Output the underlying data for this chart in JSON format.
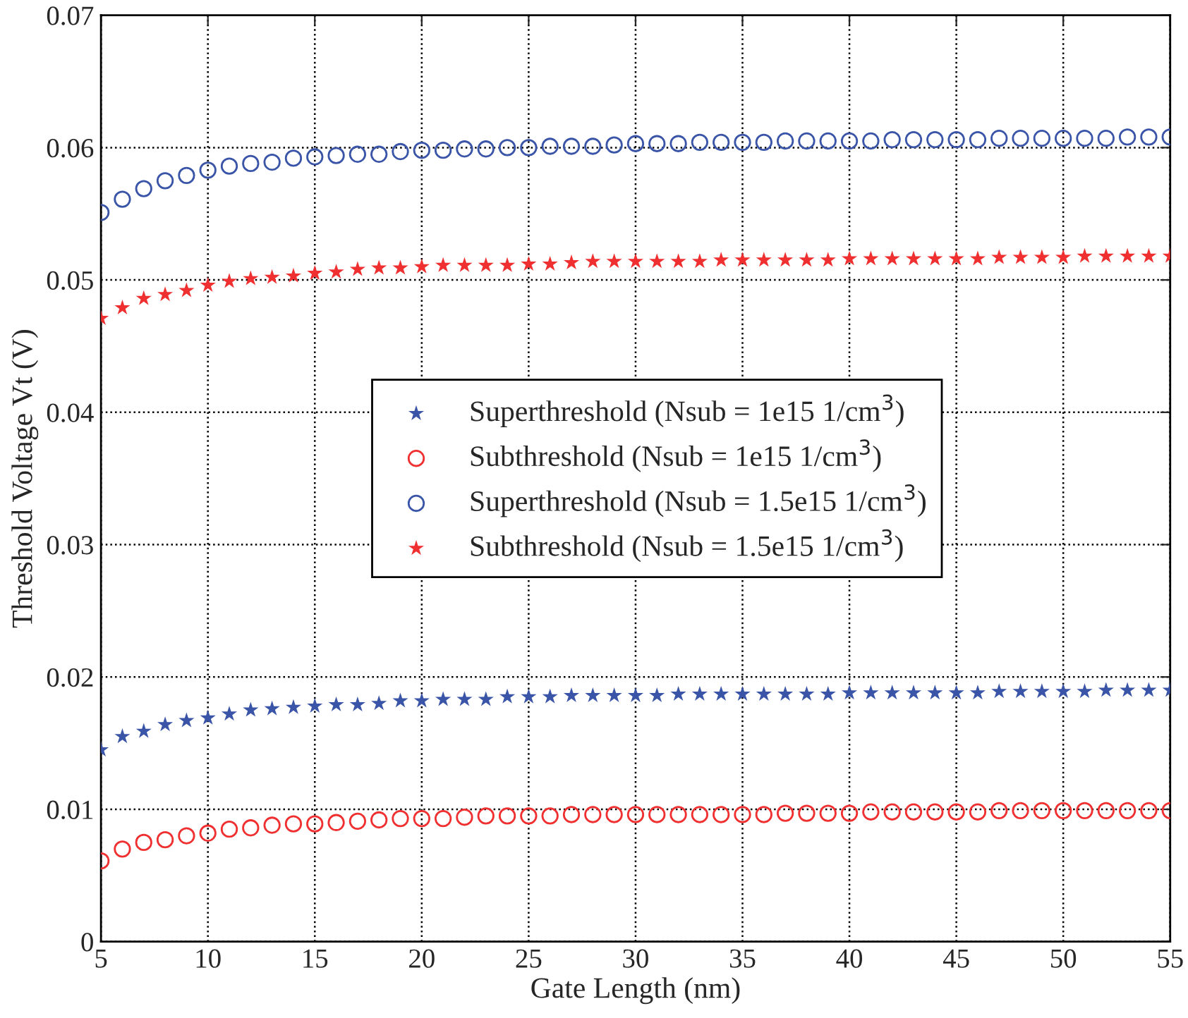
{
  "chart_data": {
    "type": "scatter",
    "xlabel": "Gate Length (nm)",
    "ylabel": "Threshold Voltage Vt (V)",
    "x": [
      5,
      6,
      7,
      8,
      9,
      10,
      11,
      12,
      13,
      14,
      15,
      16,
      17,
      18,
      19,
      20,
      21,
      22,
      23,
      24,
      25,
      26,
      27,
      28,
      29,
      30,
      31,
      32,
      33,
      34,
      35,
      36,
      37,
      38,
      39,
      40,
      41,
      42,
      43,
      44,
      45,
      46,
      47,
      48,
      49,
      50,
      51,
      52,
      53,
      54,
      55
    ],
    "series": [
      {
        "name": "Superthreshold (Nsub = 1e15 1/cm$^{3}$)",
        "color": "#3a55a8",
        "marker": "star",
        "values": [
          0.0145,
          0.0155,
          0.0159,
          0.0164,
          0.0167,
          0.0169,
          0.0172,
          0.0175,
          0.0176,
          0.0177,
          0.0178,
          0.0179,
          0.0179,
          0.018,
          0.0182,
          0.0182,
          0.0183,
          0.0183,
          0.0183,
          0.0185,
          0.0185,
          0.0185,
          0.0186,
          0.0186,
          0.0186,
          0.0186,
          0.0186,
          0.0187,
          0.0187,
          0.0187,
          0.0187,
          0.0187,
          0.0187,
          0.0187,
          0.0187,
          0.0188,
          0.0188,
          0.0188,
          0.0188,
          0.0188,
          0.0188,
          0.0188,
          0.0189,
          0.0189,
          0.0189,
          0.0189,
          0.0189,
          0.019,
          0.019,
          0.019,
          0.019
        ]
      },
      {
        "name": "Subthreshold (Nsub = 1e15 1/cm$^{3}$)",
        "color": "#f03030",
        "marker": "circle",
        "values": [
          0.0061,
          0.007,
          0.0075,
          0.0077,
          0.008,
          0.0082,
          0.0085,
          0.0086,
          0.0088,
          0.0089,
          0.0089,
          0.009,
          0.0091,
          0.0092,
          0.0093,
          0.0093,
          0.0093,
          0.0094,
          0.0095,
          0.0095,
          0.0095,
          0.0095,
          0.0096,
          0.0096,
          0.0096,
          0.0096,
          0.0096,
          0.0096,
          0.0096,
          0.0096,
          0.0096,
          0.0096,
          0.0097,
          0.0097,
          0.0097,
          0.0097,
          0.0098,
          0.0098,
          0.0098,
          0.0098,
          0.0098,
          0.0098,
          0.0099,
          0.0099,
          0.0099,
          0.0099,
          0.0099,
          0.0099,
          0.0099,
          0.0099,
          0.0099
        ]
      },
      {
        "name": "Superthreshold (Nsub = 1.5e15 1/cm$^{3}$)",
        "color": "#3a55a8",
        "marker": "circle",
        "values": [
          0.0551,
          0.0561,
          0.0569,
          0.0575,
          0.0579,
          0.0583,
          0.0586,
          0.0588,
          0.0589,
          0.0592,
          0.0593,
          0.0594,
          0.0595,
          0.0595,
          0.0597,
          0.0598,
          0.0598,
          0.0599,
          0.0599,
          0.06,
          0.06,
          0.0601,
          0.0601,
          0.0601,
          0.0602,
          0.0603,
          0.0603,
          0.0603,
          0.0604,
          0.0604,
          0.0604,
          0.0604,
          0.0605,
          0.0605,
          0.0605,
          0.0605,
          0.0605,
          0.0606,
          0.0606,
          0.0606,
          0.0606,
          0.0606,
          0.0607,
          0.0607,
          0.0607,
          0.0607,
          0.0607,
          0.0607,
          0.0608,
          0.0608,
          0.0608
        ]
      },
      {
        "name": "Subthreshold (Nsub = 1.5e15 1/cm$^{3}$)",
        "color": "#f03030",
        "marker": "star",
        "values": [
          0.0471,
          0.0479,
          0.0486,
          0.0489,
          0.0492,
          0.0496,
          0.0499,
          0.0501,
          0.0502,
          0.0503,
          0.0505,
          0.0506,
          0.0508,
          0.0509,
          0.0509,
          0.051,
          0.0511,
          0.0511,
          0.0511,
          0.0511,
          0.0512,
          0.0512,
          0.0513,
          0.0514,
          0.0514,
          0.0514,
          0.0514,
          0.0514,
          0.0514,
          0.0515,
          0.0515,
          0.0515,
          0.0515,
          0.0515,
          0.0515,
          0.0516,
          0.0516,
          0.0516,
          0.0516,
          0.0516,
          0.0516,
          0.0516,
          0.0517,
          0.0517,
          0.0517,
          0.0517,
          0.0518,
          0.0518,
          0.0518,
          0.0518,
          0.0518
        ]
      }
    ],
    "xlim": [
      5,
      55
    ],
    "xticks": [
      5,
      10,
      15,
      20,
      25,
      30,
      35,
      40,
      45,
      50,
      55
    ],
    "ylim": [
      0,
      0.07
    ],
    "yticks": [
      0,
      0.01,
      0.02,
      0.03,
      0.04,
      0.05,
      0.06,
      0.07
    ],
    "grid": true,
    "legend": "center"
  }
}
